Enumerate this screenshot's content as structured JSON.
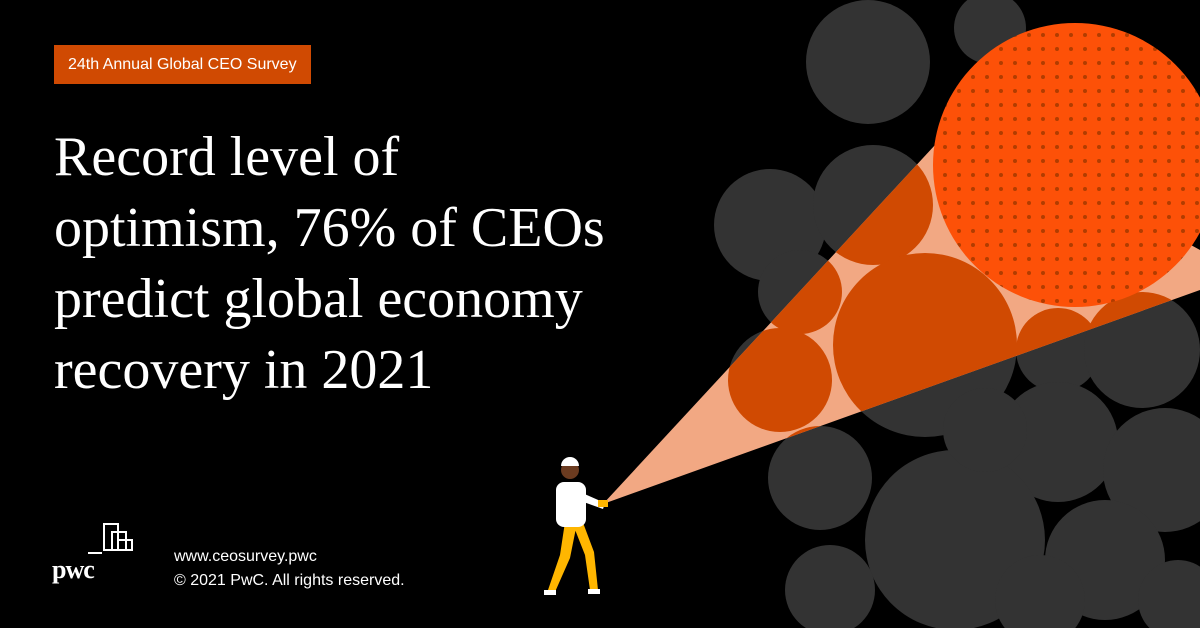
{
  "tag": "24th Annual Global CEO Survey",
  "headline": [
    "Record level of",
    "optimism, 76% of CEOs",
    "predict global economy",
    "recovery in 2021"
  ],
  "footer": {
    "logo": "pwc",
    "url": "www.ceosurvey.pwc",
    "copyright": "© 2021 PwC. All rights reserved."
  }
}
